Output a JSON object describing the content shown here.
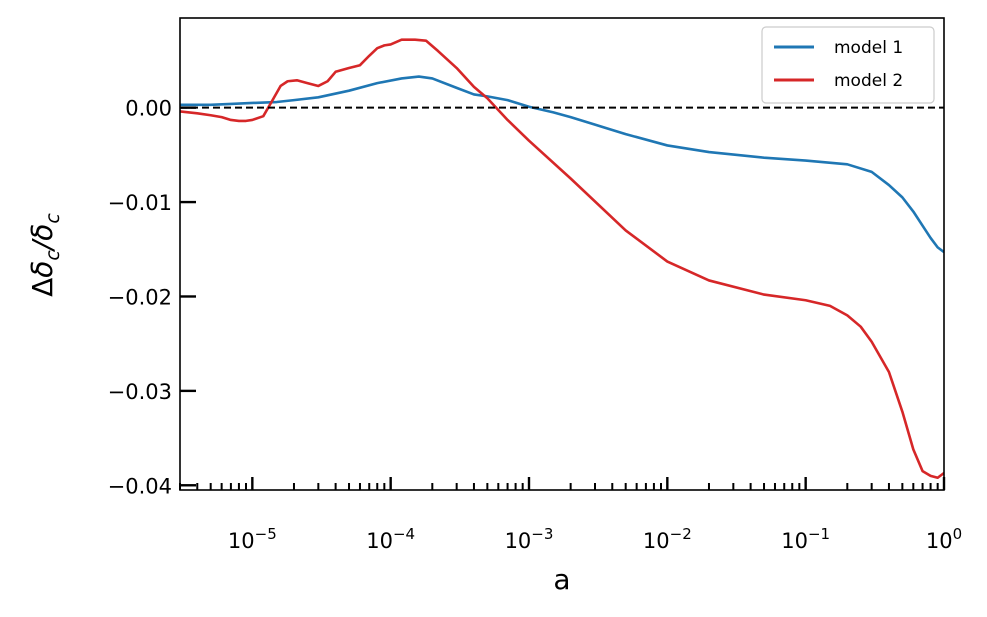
{
  "chart_data": {
    "type": "line",
    "xlabel": "a",
    "ylabel": "Δδ_c/δ_c",
    "xscale": "log",
    "xlim": [
      3e-06,
      1
    ],
    "ylim": [
      -0.0405,
      0.0095
    ],
    "x_ticks": [
      {
        "value": 1e-05,
        "label": "10",
        "exp": "−5"
      },
      {
        "value": 0.0001,
        "label": "10",
        "exp": "−4"
      },
      {
        "value": 0.001,
        "label": "10",
        "exp": "−3"
      },
      {
        "value": 0.01,
        "label": "10",
        "exp": "−2"
      },
      {
        "value": 0.1,
        "label": "10",
        "exp": "−1"
      },
      {
        "value": 1,
        "label": "10",
        "exp": "0"
      }
    ],
    "y_ticks": [
      {
        "value": 0.0,
        "label": "0.00"
      },
      {
        "value": -0.01,
        "label": "−0.01"
      },
      {
        "value": -0.02,
        "label": "−0.02"
      },
      {
        "value": -0.03,
        "label": "−0.03"
      },
      {
        "value": -0.04,
        "label": "−0.04"
      }
    ],
    "reference_line": {
      "y": 0.0,
      "style": "dashed",
      "color": "#000000"
    },
    "legend": {
      "placement": "top-right"
    },
    "grid": false,
    "series": [
      {
        "name": "model 1",
        "color": "#1f77b4",
        "points": [
          [
            3e-06,
            0.0003
          ],
          [
            5e-06,
            0.0003
          ],
          [
            7e-06,
            0.0004
          ],
          [
            1e-05,
            0.0005
          ],
          [
            1.5e-05,
            0.0006
          ],
          [
            2e-05,
            0.0008
          ],
          [
            3e-05,
            0.0011
          ],
          [
            5e-05,
            0.0018
          ],
          [
            8e-05,
            0.0026
          ],
          [
            0.00012,
            0.0031
          ],
          [
            0.00016,
            0.0033
          ],
          [
            0.0002,
            0.0031
          ],
          [
            0.0003,
            0.0021
          ],
          [
            0.0004,
            0.0014
          ],
          [
            0.0005,
            0.0012
          ],
          [
            0.0007,
            0.0008
          ],
          [
            0.001,
            0.0001
          ],
          [
            0.0015,
            -0.0005
          ],
          [
            0.002,
            -0.001
          ],
          [
            0.003,
            -0.0018
          ],
          [
            0.005,
            -0.0028
          ],
          [
            0.01,
            -0.004
          ],
          [
            0.02,
            -0.0047
          ],
          [
            0.05,
            -0.0053
          ],
          [
            0.1,
            -0.0056
          ],
          [
            0.2,
            -0.006
          ],
          [
            0.3,
            -0.0068
          ],
          [
            0.4,
            -0.0082
          ],
          [
            0.5,
            -0.0095
          ],
          [
            0.6,
            -0.011
          ],
          [
            0.7,
            -0.0125
          ],
          [
            0.8,
            -0.0138
          ],
          [
            0.9,
            -0.0148
          ],
          [
            1,
            -0.0153
          ]
        ]
      },
      {
        "name": "model 2",
        "color": "#d62728",
        "points": [
          [
            3e-06,
            -0.0004
          ],
          [
            4e-06,
            -0.0006
          ],
          [
            5e-06,
            -0.0008
          ],
          [
            6e-06,
            -0.001
          ],
          [
            7e-06,
            -0.0013
          ],
          [
            8e-06,
            -0.0014
          ],
          [
            9e-06,
            -0.0014
          ],
          [
            1e-05,
            -0.0013
          ],
          [
            1.2e-05,
            -0.0009
          ],
          [
            1.4e-05,
            0.0008
          ],
          [
            1.6e-05,
            0.0023
          ],
          [
            1.8e-05,
            0.0028
          ],
          [
            2.1e-05,
            0.0029
          ],
          [
            2.5e-05,
            0.0026
          ],
          [
            3e-05,
            0.0023
          ],
          [
            3.5e-05,
            0.0028
          ],
          [
            4e-05,
            0.0038
          ],
          [
            5e-05,
            0.0042
          ],
          [
            6e-05,
            0.0045
          ],
          [
            7e-05,
            0.0055
          ],
          [
            8e-05,
            0.0063
          ],
          [
            9e-05,
            0.0066
          ],
          [
            0.0001,
            0.0067
          ],
          [
            0.00012,
            0.0072
          ],
          [
            0.00015,
            0.0072
          ],
          [
            0.00018,
            0.0071
          ],
          [
            0.00022,
            0.006
          ],
          [
            0.0003,
            0.0042
          ],
          [
            0.0004,
            0.0022
          ],
          [
            0.0005,
            0.001
          ],
          [
            0.0007,
            -0.0013
          ],
          [
            0.001,
            -0.0035
          ],
          [
            0.002,
            -0.0075
          ],
          [
            0.005,
            -0.013
          ],
          [
            0.01,
            -0.0163
          ],
          [
            0.02,
            -0.0183
          ],
          [
            0.05,
            -0.0198
          ],
          [
            0.1,
            -0.0204
          ],
          [
            0.15,
            -0.021
          ],
          [
            0.2,
            -0.022
          ],
          [
            0.25,
            -0.0232
          ],
          [
            0.3,
            -0.0248
          ],
          [
            0.4,
            -0.028
          ],
          [
            0.5,
            -0.0322
          ],
          [
            0.6,
            -0.0362
          ],
          [
            0.7,
            -0.0385
          ],
          [
            0.8,
            -0.039
          ],
          [
            0.9,
            -0.0392
          ],
          [
            1,
            -0.0387
          ]
        ]
      }
    ]
  }
}
